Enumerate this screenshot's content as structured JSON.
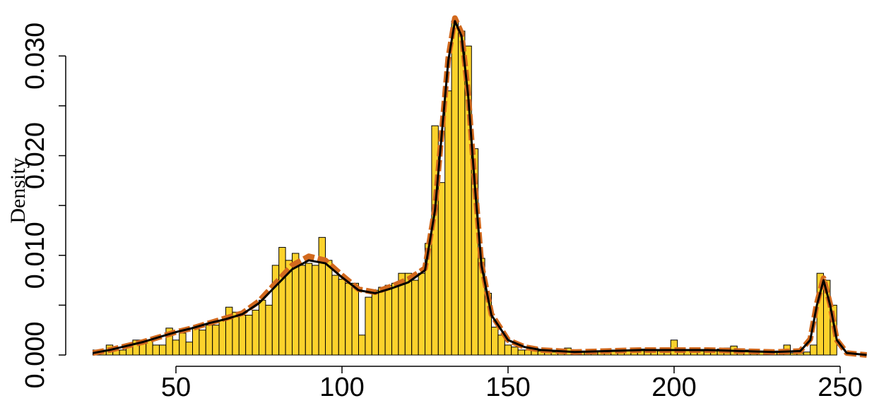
{
  "chart_data": {
    "type": "histogram",
    "ylabel": "Density",
    "bins": [
      25,
      27,
      29,
      31,
      33,
      35,
      37,
      39,
      41,
      43,
      45,
      47,
      49,
      51,
      53,
      55,
      57,
      59,
      61,
      63,
      65,
      67,
      69,
      71,
      73,
      75,
      77,
      79,
      81,
      83,
      85,
      87,
      89,
      91,
      93,
      95,
      97,
      99,
      101,
      103,
      105,
      107,
      109,
      111,
      113,
      115,
      117,
      119,
      121,
      123,
      125,
      127,
      129,
      131,
      133,
      135,
      137,
      139,
      141,
      143,
      145,
      147,
      149,
      151,
      153,
      155,
      157,
      159,
      161,
      163,
      165,
      167,
      169,
      171,
      173,
      175,
      177,
      179,
      181,
      183,
      185,
      187,
      189,
      191,
      193,
      195,
      197,
      199,
      201,
      203,
      205,
      207,
      209,
      211,
      213,
      215,
      217,
      219,
      221,
      223,
      225,
      227,
      229,
      231,
      233,
      235,
      237,
      239,
      241,
      243,
      245,
      247,
      249
    ],
    "values": [
      0.0005,
      0.0005,
      0.001,
      0.0005,
      0.0005,
      0.001,
      0.0015,
      0.0015,
      0.0015,
      0.001,
      0.001,
      0.0027,
      0.0015,
      0.0022,
      0.0013,
      0.0028,
      0.0025,
      0.003,
      0.003,
      0.0035,
      0.0048,
      0.0043,
      0.004,
      0.004,
      0.0045,
      0.0055,
      0.005,
      0.009,
      0.0108,
      0.0095,
      0.0102,
      0.009,
      0.0092,
      0.009,
      0.0118,
      0.0095,
      0.008,
      0.0076,
      0.0072,
      0.0072,
      0.002,
      0.0058,
      0.0065,
      0.0068,
      0.007,
      0.0072,
      0.0082,
      0.0082,
      0.0075,
      0.0082,
      0.0112,
      0.023,
      0.0173,
      0.0265,
      0.0335,
      0.0325,
      0.031,
      0.0207,
      0.0097,
      0.0062,
      0.0028,
      0.002,
      0.001,
      0.0008,
      0.0005,
      0.0005,
      0.0007,
      0.0004,
      0.0003,
      0.0003,
      0.0005,
      0.0007,
      0.0003,
      0.0004,
      0.0003,
      0.0003,
      0.0004,
      0.0004,
      0.0005,
      0.0005,
      0.0005,
      0.0006,
      0.0006,
      0.0006,
      0.0005,
      0.0004,
      0.0006,
      0.0015,
      0.0006,
      0.0005,
      0.0006,
      0.0004,
      0.0005,
      0.0004,
      0.0006,
      0.0007,
      0.0009,
      0.0003,
      0.0005,
      0.0005,
      0.0004,
      0.0005,
      0.0004,
      0.0004,
      0.001,
      0.0002,
      0.0002,
      0.0003,
      0.001,
      0.0082,
      0.0075,
      0.005
    ],
    "color": "#fcd22c",
    "edgecolor": "#000000",
    "lines": [
      {
        "color": "#d2691e",
        "dashed": true,
        "x": [
          25,
          30,
          35,
          40,
          45,
          50,
          55,
          60,
          65,
          70,
          75,
          80,
          85,
          90,
          95,
          100,
          105,
          110,
          115,
          120,
          125,
          128,
          130,
          132,
          134,
          136,
          138,
          140,
          142,
          145,
          150,
          155,
          160,
          170,
          180,
          190,
          200,
          210,
          220,
          230,
          238,
          241,
          243,
          245,
          247,
          249,
          252,
          258
        ],
        "y": [
          0.0002,
          0.0005,
          0.0009,
          0.0013,
          0.0018,
          0.0023,
          0.0027,
          0.0032,
          0.0037,
          0.0042,
          0.0054,
          0.0072,
          0.009,
          0.0099,
          0.0095,
          0.008,
          0.0066,
          0.0063,
          0.0069,
          0.0076,
          0.0087,
          0.0147,
          0.0222,
          0.0298,
          0.0338,
          0.0323,
          0.0262,
          0.0172,
          0.0091,
          0.0041,
          0.0015,
          0.0008,
          0.0005,
          0.0003,
          0.0004,
          0.0005,
          0.0005,
          0.0005,
          0.0004,
          0.0003,
          0.0004,
          0.0016,
          0.0052,
          0.0077,
          0.0051,
          0.0015,
          0.0002,
          0
        ]
      },
      {
        "color": "#000000",
        "dashed": false,
        "x": [
          25,
          30,
          35,
          40,
          45,
          50,
          55,
          60,
          65,
          70,
          75,
          80,
          85,
          90,
          95,
          100,
          105,
          110,
          115,
          120,
          125,
          128,
          130,
          132,
          134,
          136,
          138,
          140,
          142,
          145,
          150,
          155,
          160,
          170,
          180,
          190,
          200,
          210,
          220,
          230,
          238,
          241,
          243,
          245,
          247,
          249,
          252,
          258
        ],
        "y": [
          0.0002,
          0.0005,
          0.0009,
          0.0013,
          0.0018,
          0.0023,
          0.0027,
          0.0032,
          0.0036,
          0.0041,
          0.0052,
          0.0069,
          0.0086,
          0.0095,
          0.0092,
          0.0078,
          0.0065,
          0.0062,
          0.0067,
          0.0073,
          0.0085,
          0.0145,
          0.022,
          0.0295,
          0.0335,
          0.032,
          0.026,
          0.017,
          0.009,
          0.004,
          0.0015,
          0.0008,
          0.0005,
          0.0003,
          0.0004,
          0.0005,
          0.0005,
          0.0005,
          0.0004,
          0.0003,
          0.0004,
          0.0015,
          0.005,
          0.0075,
          0.005,
          0.0015,
          0.0002,
          0
        ]
      }
    ],
    "xlim": [
      25,
      258
    ],
    "ylim": [
      0,
      0.0342
    ],
    "xticks": [
      50,
      100,
      150,
      200,
      250
    ],
    "yticks": [
      {
        "value": 0,
        "label": "0.000"
      },
      {
        "value": 0.005,
        "label": null
      },
      {
        "value": 0.01,
        "label": "0.010"
      },
      {
        "value": 0.015,
        "label": null
      },
      {
        "value": 0.02,
        "label": "0.020"
      },
      {
        "value": 0.025,
        "label": null
      },
      {
        "value": 0.03,
        "label": "0.030"
      }
    ]
  }
}
